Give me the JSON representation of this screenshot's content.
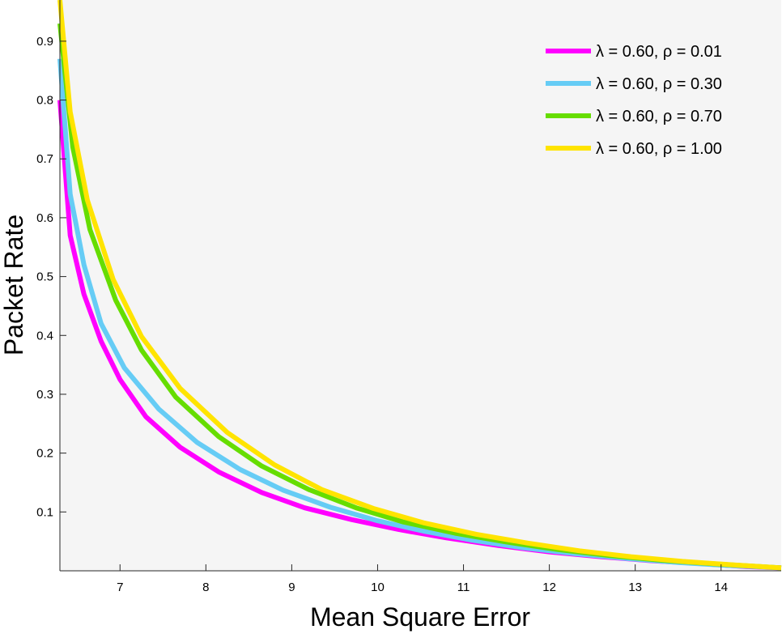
{
  "chart_data": {
    "type": "line",
    "title": "",
    "xlabel": "Mean Square Error",
    "ylabel": "Packet Rate",
    "xlim": [
      6.3,
      14.7
    ],
    "ylim": [
      0.0,
      0.97
    ],
    "xticks": [
      7,
      8,
      9,
      10,
      11,
      12,
      13,
      14
    ],
    "yticks": [
      0.1,
      0.2,
      0.3,
      0.4,
      0.5,
      0.6,
      0.7,
      0.8,
      0.9
    ],
    "grid": false,
    "background": "#f5f5f5",
    "legend_position": "top-right",
    "series": [
      {
        "name": "λ = 0.60, ρ = 0.01",
        "color": "#ff00ff",
        "x": [
          6.3,
          6.42,
          6.58,
          6.78,
          7.0,
          7.3,
          7.7,
          8.15,
          8.65,
          9.15,
          9.7,
          10.25,
          10.8,
          11.4,
          12.0,
          12.6,
          13.2,
          13.8,
          14.3,
          14.7
        ],
        "y": [
          0.8,
          0.57,
          0.47,
          0.39,
          0.325,
          0.262,
          0.21,
          0.168,
          0.133,
          0.107,
          0.087,
          0.07,
          0.056,
          0.043,
          0.032,
          0.024,
          0.017,
          0.012,
          0.007,
          0.005
        ]
      },
      {
        "name": "λ = 0.60, ρ = 0.30",
        "color": "#66ccf5",
        "x": [
          6.3,
          6.42,
          6.58,
          6.78,
          7.05,
          7.45,
          7.9,
          8.4,
          8.9,
          9.45,
          10.0,
          10.55,
          11.1,
          11.7,
          12.3,
          12.9,
          13.5,
          14.1,
          14.7
        ],
        "y": [
          0.87,
          0.64,
          0.52,
          0.42,
          0.345,
          0.275,
          0.218,
          0.172,
          0.137,
          0.108,
          0.085,
          0.067,
          0.052,
          0.039,
          0.029,
          0.021,
          0.014,
          0.009,
          0.005
        ]
      },
      {
        "name": "λ = 0.60, ρ = 0.70",
        "color": "#66dd00",
        "x": [
          6.3,
          6.45,
          6.65,
          6.95,
          7.25,
          7.65,
          8.15,
          8.65,
          9.2,
          9.75,
          10.3,
          10.9,
          11.5,
          12.1,
          12.7,
          13.3,
          13.9,
          14.7
        ],
        "y": [
          0.93,
          0.72,
          0.58,
          0.46,
          0.375,
          0.295,
          0.228,
          0.178,
          0.138,
          0.107,
          0.083,
          0.064,
          0.049,
          0.036,
          0.026,
          0.018,
          0.012,
          0.005
        ]
      },
      {
        "name": "λ = 0.60, ρ = 1.00",
        "color": "#ffe400",
        "x": [
          6.3,
          6.42,
          6.62,
          6.92,
          7.25,
          7.7,
          8.25,
          8.8,
          9.35,
          9.95,
          10.55,
          11.15,
          11.75,
          12.35,
          12.95,
          13.55,
          14.15,
          14.7
        ],
        "y": [
          0.97,
          0.78,
          0.63,
          0.495,
          0.398,
          0.31,
          0.235,
          0.18,
          0.138,
          0.106,
          0.081,
          0.062,
          0.047,
          0.034,
          0.024,
          0.016,
          0.01,
          0.005
        ]
      }
    ]
  }
}
